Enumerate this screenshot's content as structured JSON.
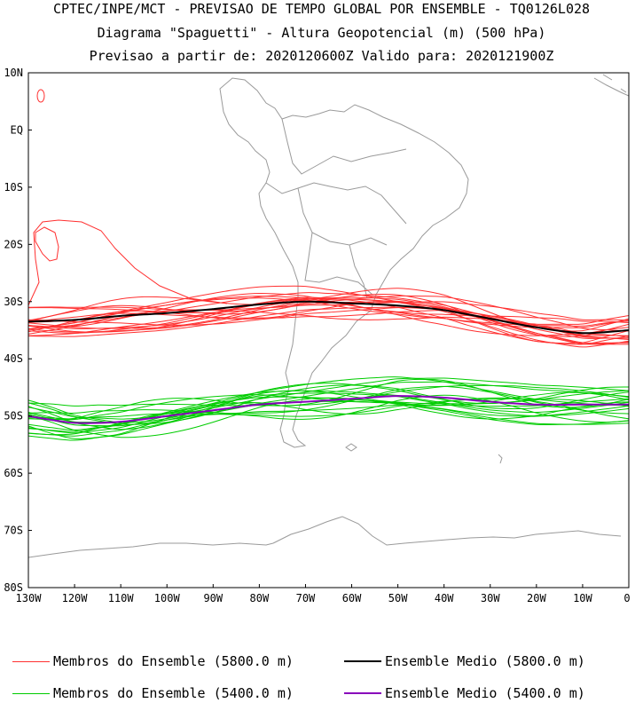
{
  "title": {
    "line1": "CPTEC/INPE/MCT - PREVISAO DE TEMPO GLOBAL POR ENSEMBLE - TQ0126L028",
    "line2": "Diagrama \"Spaguetti\" - Altura Geopotencial (m) (500 hPa)",
    "line3": "Previsao a partir de: 2020120600Z  Valido para: 2020121900Z"
  },
  "chart_data": {
    "type": "line",
    "map_extent": {
      "lon": [
        -130,
        0
      ],
      "lat": [
        -80,
        10
      ]
    },
    "lat_ticks": [
      "10N",
      "EQ",
      "10S",
      "20S",
      "30S",
      "40S",
      "50S",
      "60S",
      "70S",
      "80S"
    ],
    "lon_ticks": [
      "130W",
      "120W",
      "110W",
      "100W",
      "90W",
      "80W",
      "70W",
      "60W",
      "50W",
      "40W",
      "30W",
      "20W",
      "10W",
      "0"
    ],
    "lon_values": [
      -130,
      -120,
      -110,
      -100,
      -90,
      -80,
      -70,
      -60,
      -50,
      -40,
      -30,
      -20,
      -10,
      0
    ],
    "series": [
      {
        "name": "Ensemble Medio (5800.0 m)",
        "color": "#000000",
        "lat": [
          -33.5,
          -33.2,
          -32.5,
          -32.0,
          -31.3,
          -30.5,
          -30.0,
          -30.3,
          -30.7,
          -31.5,
          -33.0,
          -34.5,
          -35.5,
          -35.0
        ]
      },
      {
        "name": "Ensemble Medio (5400.0 m)",
        "color": "#8800bb",
        "lat": [
          -50.0,
          -51.2,
          -51.0,
          -50.0,
          -49.0,
          -48.0,
          -47.5,
          -47.0,
          -46.5,
          -46.8,
          -47.5,
          -48.0,
          -48.0,
          -48.0
        ]
      }
    ],
    "member_spread": {
      "members_5800": 20,
      "members_5400": 20
    }
  },
  "legend": {
    "red_members": "Membros do Ensemble (5800.0 m)",
    "black_mean": "Ensemble Medio (5800.0 m)",
    "green_members": "Membros do Ensemble (5400.0 m)",
    "purple_mean": "Ensemble Medio (5400.0 m)"
  },
  "colors": {
    "red": "#ff3030",
    "green": "#00cc00",
    "black": "#000000",
    "purple": "#8800bb",
    "coast": "#9a9a9a"
  }
}
